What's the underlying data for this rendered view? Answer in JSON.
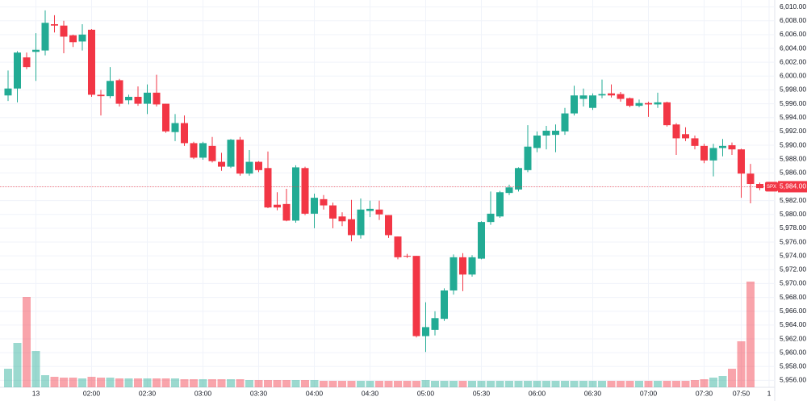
{
  "chart_data": {
    "type": "candlestick",
    "categories": [
      null,
      null,
      null,
      "13",
      null,
      null,
      null,
      null,
      null,
      "02:00",
      null,
      null,
      null,
      null,
      null,
      "02:30",
      null,
      null,
      null,
      null,
      null,
      "03:00",
      null,
      null,
      null,
      null,
      null,
      "03:30",
      null,
      null,
      null,
      null,
      null,
      "04:00",
      null,
      null,
      null,
      null,
      null,
      "04:30",
      null,
      null,
      null,
      null,
      null,
      "05:00",
      null,
      null,
      null,
      null,
      null,
      "05:30",
      null,
      null,
      null,
      null,
      null,
      "06:00",
      null,
      null,
      null,
      null,
      null,
      "06:30",
      null,
      null,
      null,
      null,
      null,
      "07:00",
      null,
      null,
      null,
      null,
      null,
      "07:30",
      null,
      null,
      null,
      "07:50",
      null,
      null,
      "1"
    ],
    "open": [
      5997.2,
      5998.2,
      6002.7,
      6003.5,
      6003.7,
      6007.5,
      6007.3,
      6005.9,
      6005,
      6006.7,
      5997.3,
      5997.1,
      5999.4,
      5996.5,
      5997,
      5996,
      5997.6,
      5996,
      5991.9,
      5993.2,
      5990.3,
      5988.2,
      5989.9,
      5987.6,
      5986.9,
      5990.8,
      5985.9,
      5987.6,
      5986.7,
      5981.4,
      5981.5,
      5979.1,
      5986.7,
      5980.1,
      5982.2,
      5981.3,
      5979.7,
      5979.3,
      5977,
      5980.5,
      5980.7,
      5979.9,
      5976.8,
      5974,
      5974,
      5962.4,
      5963.3,
      5964.9,
      5969,
      5973.8,
      5971.3,
      5973.6,
      5978.9,
      5979.7,
      5983.1,
      5983.6,
      5986.4,
      5989.6,
      5991.4,
      5991.5,
      5992,
      5994.6,
      5996.7,
      5995.4,
      5997.2,
      5997.5,
      5997.4,
      5996.8,
      5995.7,
      5996.1,
      5995.9,
      5996.2,
      5993,
      5991.6,
      5991,
      5989.9,
      5987.8,
      5989.6,
      5990,
      5989.4,
      5985.9,
      5984.4,
      null
    ],
    "high": [
      6000.8,
      6003.6,
      6003.4,
      6006.2,
      6009.5,
      6008.8,
      6008,
      6006,
      6007.5,
      6006.8,
      5998,
      6001.3,
      5999.6,
      5997.3,
      5998.5,
      5998.8,
      6000.2,
      5996,
      5994.5,
      5994.3,
      5990.5,
      5990.5,
      5991.2,
      5988.9,
      5990.9,
      5991.2,
      5989.3,
      5987.7,
      5989.1,
      5983.2,
      5983.7,
      5987.1,
      5986.9,
      5983,
      5982.8,
      5981.7,
      5980.3,
      5982.1,
      5982.3,
      5982,
      5982,
      5979.9,
      5976.8,
      5974.3,
      5974,
      5967.3,
      5966,
      5969.3,
      5974.2,
      5974.4,
      5974.1,
      5979,
      5983.3,
      5983.4,
      5984.3,
      5986.8,
      5992.9,
      5992,
      5992.8,
      5993,
      5995.4,
      5998.6,
      5998.2,
      5997.5,
      5999.5,
      5998.8,
      5997.7,
      5996.9,
      5996.6,
      5996.3,
      5997.6,
      5996.3,
      5993.2,
      5992.6,
      5991.4,
      5990.2,
      5990.2,
      5990.9,
      5990.4,
      5989.5,
      5987.3,
      5984.6,
      null
    ],
    "low": [
      5996.4,
      5996.2,
      6001,
      5999.3,
      6003,
      6006.3,
      6003.3,
      6004.2,
      6003.7,
      5997,
      5994.3,
      5996.8,
      5995.6,
      5995.9,
      5995.7,
      5994.5,
      5995.6,
      5991.8,
      5990.6,
      5989.9,
      5988,
      5987.9,
      5987.5,
      5986.3,
      5986.7,
      5985.6,
      5985.6,
      5986.1,
      5980.9,
      5980.6,
      5979,
      5978.8,
      5979.9,
      5978,
      5980.7,
      5978,
      5978.3,
      5976.1,
      5976.5,
      5979.6,
      5979.2,
      5976.6,
      5973.5,
      5973.7,
      5962.2,
      5960.1,
      5962.5,
      5964.6,
      5968.4,
      5968.9,
      5971,
      5973.5,
      5978.5,
      5979.5,
      5982.8,
      5983.3,
      5986.1,
      5989,
      5989.4,
      5989,
      5991.5,
      5994.3,
      5995.6,
      5995.1,
      5996.8,
      5996.9,
      5996.3,
      5995.5,
      5995.5,
      5994.1,
      5995.4,
      5992.7,
      5988.6,
      5990.6,
      5989.4,
      5987.4,
      5985.5,
      5988.4,
      5988.6,
      5982.4,
      5981.6,
      5983.5,
      null
    ],
    "close": [
      5998.2,
      6003.4,
      6001.3,
      6003.8,
      6007.7,
      6007.3,
      6005.7,
      6004.9,
      6006,
      5997.3,
      5997.1,
      5999.3,
      5996,
      5997,
      5996,
      5997.6,
      5995.9,
      5992,
      5993.2,
      5990.3,
      5988.2,
      5990.3,
      5987.7,
      5986.9,
      5990.8,
      5985.9,
      5987.6,
      5986.4,
      5981,
      5981,
      5979.1,
      5986.8,
      5980.1,
      5982.4,
      5981.3,
      5979.4,
      5979,
      5977,
      5980.7,
      5980.8,
      5980,
      5977,
      5973.8,
      5973.9,
      5962.4,
      5963.7,
      5965,
      5969,
      5973.8,
      5971.3,
      5973.8,
      5978.9,
      5980.1,
      5983.2,
      5983.9,
      5986.7,
      5989.8,
      5991.4,
      5992.1,
      5992.1,
      5994.6,
      5997.2,
      5997.2,
      5997.2,
      5997.4,
      5997.2,
      5996.7,
      5995.7,
      5996.1,
      5995.9,
      5996.2,
      5992.9,
      5991,
      5991,
      5989.9,
      5987.8,
      5989.6,
      5989.9,
      5989.4,
      5985.9,
      5984.4,
      5983.8,
      null
    ],
    "volume": [
      23,
      55,
      112,
      45,
      15,
      13,
      12,
      12,
      11,
      13,
      12,
      12,
      11,
      11,
      11,
      11,
      11,
      11,
      11,
      10,
      10,
      10,
      10,
      10,
      10,
      10,
      9,
      9,
      9,
      9,
      9,
      9,
      9,
      9,
      8,
      8,
      8,
      8,
      8,
      8,
      8,
      8,
      8,
      8,
      8,
      9,
      8,
      8,
      8,
      8,
      8,
      8,
      8,
      8,
      8,
      8,
      8,
      8,
      8,
      8,
      8,
      8,
      8,
      8,
      8,
      8,
      8,
      8,
      8,
      8,
      8,
      8,
      8,
      8,
      9,
      10,
      12,
      14,
      23,
      57,
      131,
      null,
      null
    ],
    "up_color": "#22ab94",
    "down_color": "#f23645",
    "ylim": [
      5955,
      6011
    ],
    "yticks": [
      {
        "value": 5956,
        "label": "5,956.00"
      },
      {
        "value": 5958,
        "label": "5,958.00"
      },
      {
        "value": 5960,
        "label": "5,960.00"
      },
      {
        "value": 5962,
        "label": "5,962.00"
      },
      {
        "value": 5964,
        "label": "5,964.00"
      },
      {
        "value": 5966,
        "label": "5,966.00"
      },
      {
        "value": 5968,
        "label": "5,968.00"
      },
      {
        "value": 5970,
        "label": "5,970.00"
      },
      {
        "value": 5972,
        "label": "5,972.00"
      },
      {
        "value": 5974,
        "label": "5,974.00"
      },
      {
        "value": 5976,
        "label": "5,976.00"
      },
      {
        "value": 5978,
        "label": "5,978.00"
      },
      {
        "value": 5980,
        "label": "5,980.00"
      },
      {
        "value": 5982,
        "label": "5,982.00"
      },
      {
        "value": 5984,
        "label": "5,984.00"
      },
      {
        "value": 5986,
        "label": "5,986.00"
      },
      {
        "value": 5988,
        "label": "5,988.00"
      },
      {
        "value": 5990,
        "label": "5,990.00"
      },
      {
        "value": 5992,
        "label": "5,992.00"
      },
      {
        "value": 5994,
        "label": "5,994.00"
      },
      {
        "value": 5996,
        "label": "5,996.00"
      },
      {
        "value": 5998,
        "label": "5,998.00"
      },
      {
        "value": 6000,
        "label": "6,000.00"
      },
      {
        "value": 6002,
        "label": "6,002.00"
      },
      {
        "value": 6004,
        "label": "6,004.00"
      },
      {
        "value": 6006,
        "label": "6,006.00"
      },
      {
        "value": 6008,
        "label": "6,008.00"
      },
      {
        "value": 6010,
        "label": "6,010.00"
      }
    ],
    "grid": true,
    "last_price": {
      "value": 5984,
      "label": "5,984.00",
      "symbol": "SPX"
    }
  }
}
